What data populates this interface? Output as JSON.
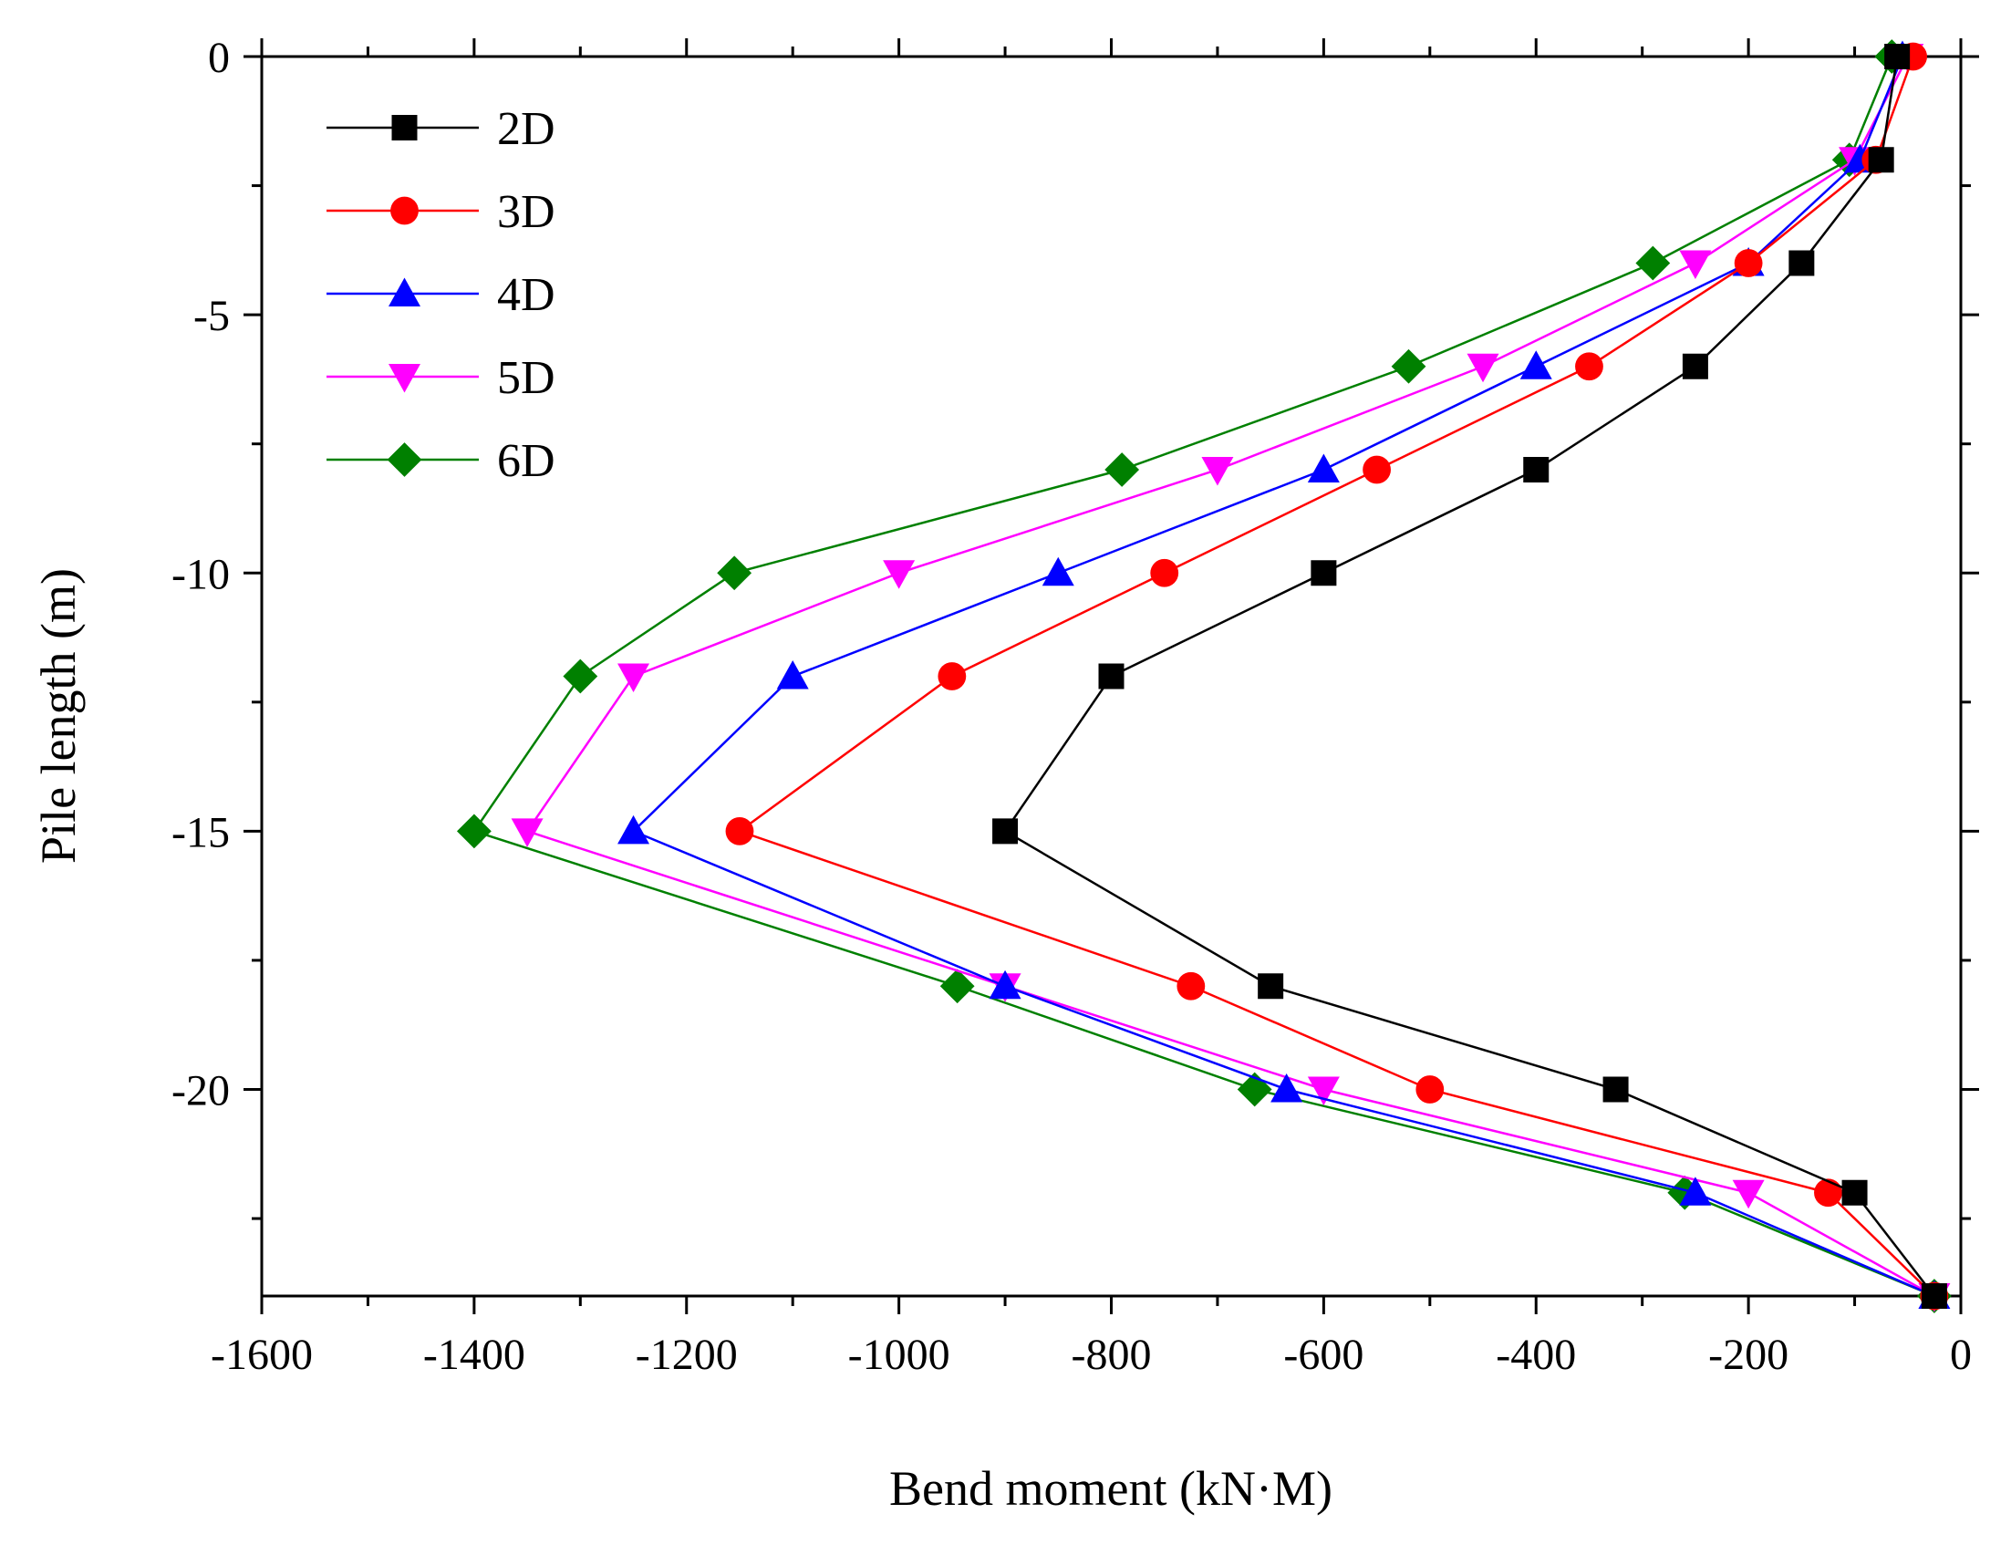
{
  "chart_data": {
    "type": "line",
    "title": "",
    "xlabel": "Bend moment (kN·M)",
    "ylabel": "Pile length (m)",
    "xlim": [
      -1600,
      0
    ],
    "ylim": [
      -24,
      0
    ],
    "xticks": [
      -1600,
      -1400,
      -1200,
      -1000,
      -800,
      -600,
      -400,
      -200,
      0
    ],
    "xtick_labels": [
      "-1600",
      "-1400",
      "-1200",
      "-1000",
      "-800",
      "-600",
      "-400",
      "-200",
      "0"
    ],
    "yticks": [
      0,
      -5,
      -10,
      -15,
      -20
    ],
    "ytick_labels": [
      "0",
      "-5",
      "-10",
      "-15",
      "-20"
    ],
    "grid": false,
    "legend_position": "top-left",
    "y": [
      0,
      -2,
      -4,
      -6,
      -8,
      -10,
      -12,
      -15,
      -18,
      -20,
      -22,
      -24
    ],
    "series": [
      {
        "name": "2D",
        "color": "#000000",
        "marker": "square",
        "x": [
          -60,
          -75,
          -150,
          -250,
          -400,
          -600,
          -800,
          -900,
          -650,
          -325,
          -100,
          -25
        ]
      },
      {
        "name": "3D",
        "color": "#ff0000",
        "marker": "circle",
        "x": [
          -45,
          -80,
          -200,
          -350,
          -550,
          -750,
          -950,
          -1150,
          -725,
          -500,
          -125,
          -25
        ]
      },
      {
        "name": "4D",
        "color": "#0000ff",
        "marker": "triangle-up",
        "x": [
          -55,
          -95,
          -200,
          -400,
          -600,
          -850,
          -1100,
          -1250,
          -900,
          -635,
          -250,
          -25
        ]
      },
      {
        "name": "5D",
        "color": "#ff00ff",
        "marker": "triangle-down",
        "x": [
          -50,
          -100,
          -250,
          -450,
          -700,
          -1000,
          -1250,
          -1350,
          -900,
          -600,
          -200,
          -25
        ]
      },
      {
        "name": "6D",
        "color": "#008000",
        "marker": "diamond",
        "x": [
          -65,
          -105,
          -290,
          -520,
          -790,
          -1155,
          -1300,
          -1400,
          -945,
          -665,
          -260,
          -25
        ]
      }
    ]
  }
}
